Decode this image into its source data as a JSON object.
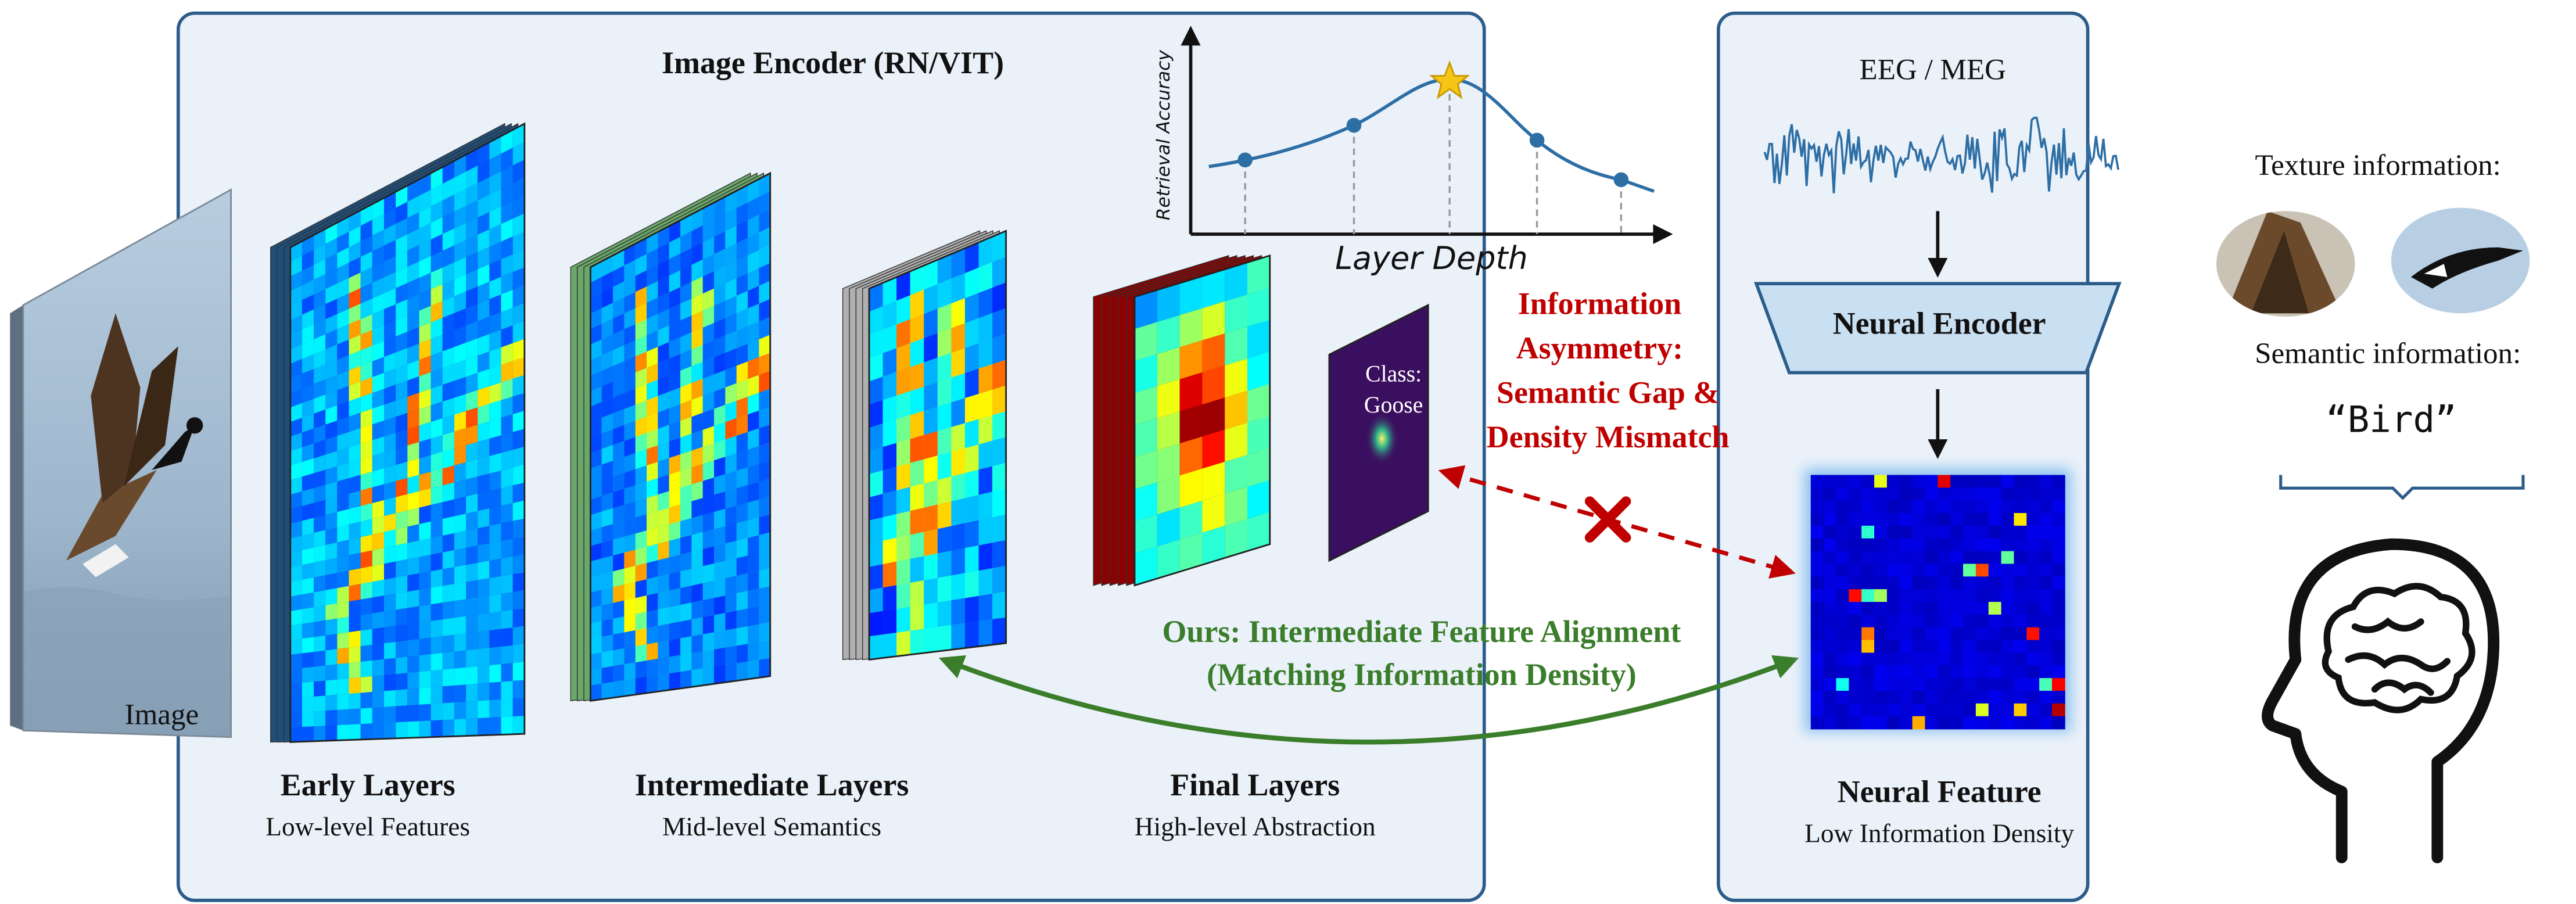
{
  "encoder": {
    "title": "Image Encoder (RN/VIT)",
    "input_label": "Image",
    "stages": [
      {
        "title": "Early Layers",
        "subtitle": "Low-level Features"
      },
      {
        "title": "Intermediate Layers",
        "subtitle": "Mid-level Semantics"
      },
      {
        "title": "Final Layers",
        "subtitle": "High-level Abstraction"
      }
    ],
    "class_label": [
      "Class:",
      "Goose"
    ]
  },
  "retrieval_plot": {
    "y_label": "Retrieval Accuracy",
    "x_label": "Layer Depth"
  },
  "asymmetry": {
    "lines": [
      "Information",
      "Asymmetry:",
      "Semantic Gap &",
      "Density Mismatch"
    ]
  },
  "ours": {
    "lines": [
      "Ours: Intermediate Feature Alignment",
      "(Matching Information Density)"
    ]
  },
  "neural": {
    "signal_label": "EEG / MEG",
    "encoder_label": "Neural Encoder",
    "feature_title": "Neural Feature",
    "feature_subtitle": "Low Information Density"
  },
  "info": {
    "texture_label": "Texture information:",
    "semantic_label": "Semantic information:",
    "semantic_word": "“Bird”"
  }
}
